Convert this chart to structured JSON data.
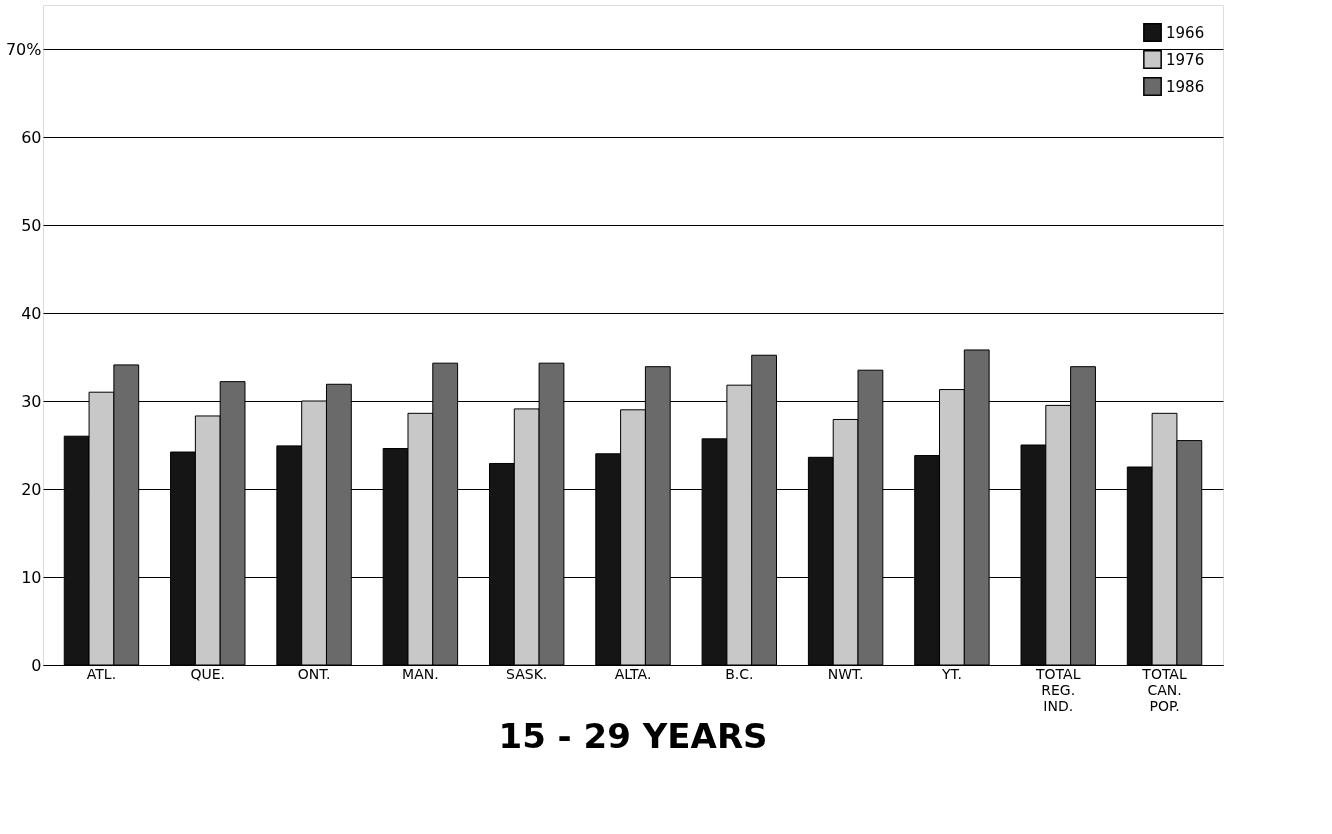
{
  "chart_data": {
    "type": "bar",
    "title": "15 - 29 YEARS",
    "categories": [
      "ATL.",
      "QUE.",
      "ONT.",
      "MAN.",
      "SASK.",
      "ALTA.",
      "B.C.",
      "NWT.",
      "YT.",
      "TOTAL\nREG.\nIND.",
      "TOTAL\nCAN.\nPOP."
    ],
    "series": [
      {
        "name": "1966",
        "color": "#151515",
        "values": [
          26.0,
          24.2,
          24.9,
          24.6,
          22.9,
          24.0,
          25.7,
          23.6,
          23.8,
          25.0,
          22.5
        ]
      },
      {
        "name": "1976",
        "color": "#c8c8c8",
        "values": [
          31.0,
          28.3,
          30.0,
          28.6,
          29.1,
          29.0,
          31.8,
          27.9,
          31.3,
          29.5,
          28.6
        ]
      },
      {
        "name": "1986",
        "color": "#6a6a6a",
        "values": [
          34.1,
          32.2,
          31.9,
          34.3,
          34.3,
          33.9,
          35.2,
          33.5,
          35.8,
          33.9,
          25.5
        ]
      }
    ],
    "ylim": [
      0,
      75
    ],
    "yticks": [
      0,
      10,
      20,
      30,
      40,
      50,
      60,
      {
        "value": 70,
        "label": "70%"
      }
    ],
    "grid": "y",
    "legend": "top right"
  }
}
